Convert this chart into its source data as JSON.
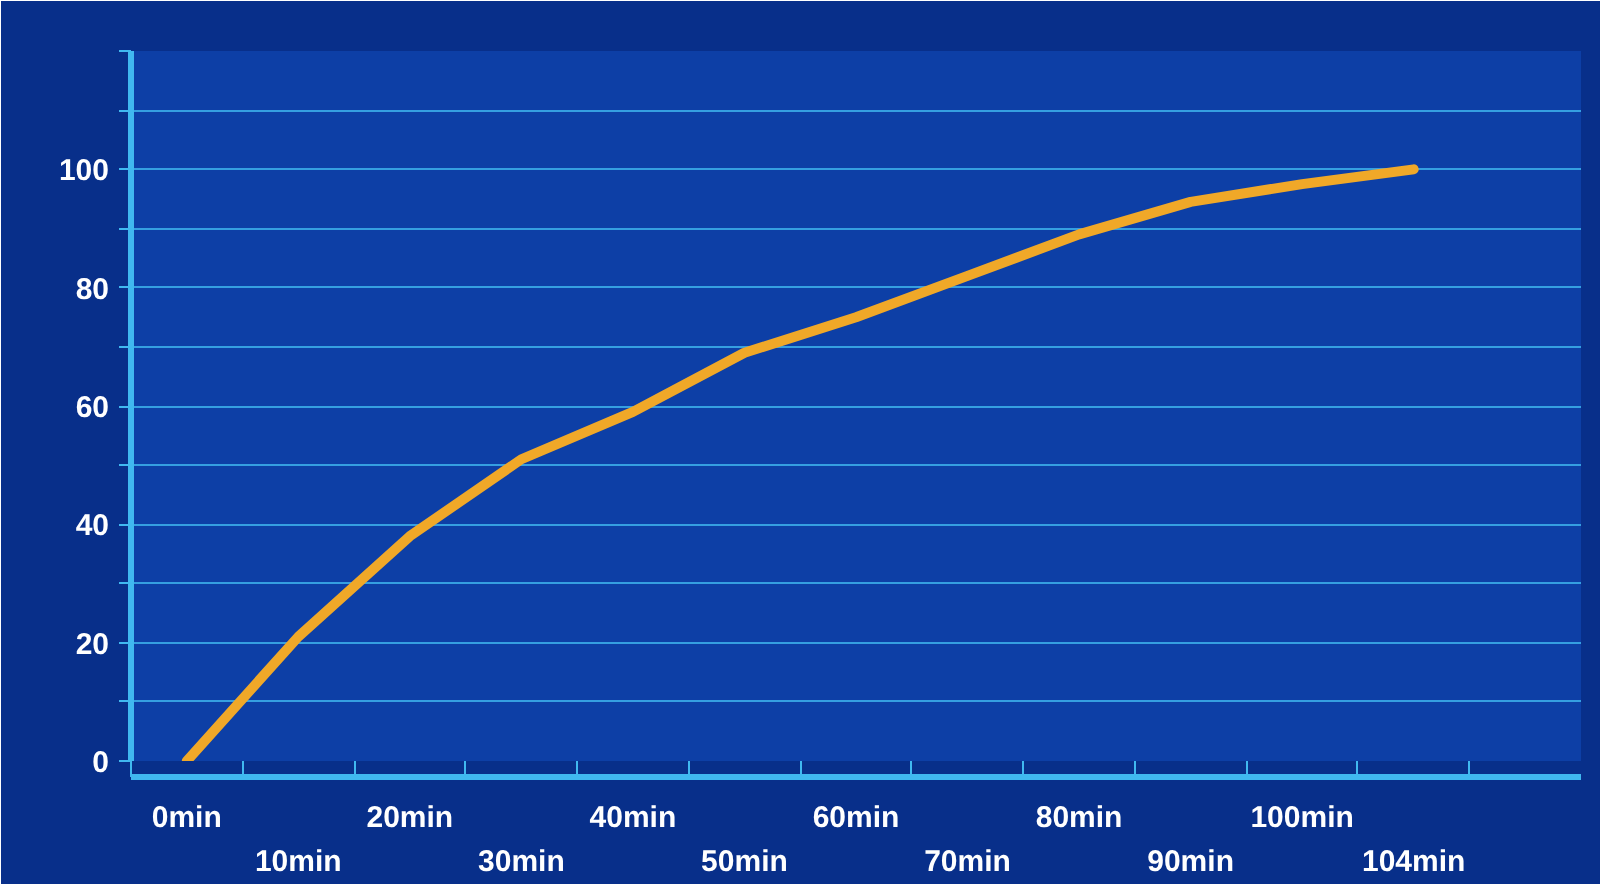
{
  "chart_data": {
    "type": "line",
    "categories": [
      "0min",
      "10min",
      "20min",
      "30min",
      "40min",
      "50min",
      "60min",
      "70min",
      "80min",
      "90min",
      "100min",
      "104min"
    ],
    "series": [
      {
        "color": "#f0a828",
        "values": [
          0,
          21,
          38,
          51,
          59,
          69,
          75,
          82,
          89,
          94.5,
          97.5,
          100
        ]
      }
    ],
    "ylim": [
      0,
      120
    ],
    "yticks": [
      0,
      {
        "value": 10,
        "label": null
      },
      20,
      {
        "value": 30,
        "label": null
      },
      40,
      {
        "value": 50,
        "label": null
      },
      60,
      {
        "value": 70,
        "label": null
      },
      80,
      {
        "value": 90,
        "label": null
      },
      100,
      {
        "value": 110,
        "label": null
      },
      {
        "value": 120,
        "label": null
      }
    ],
    "grid": "y"
  }
}
